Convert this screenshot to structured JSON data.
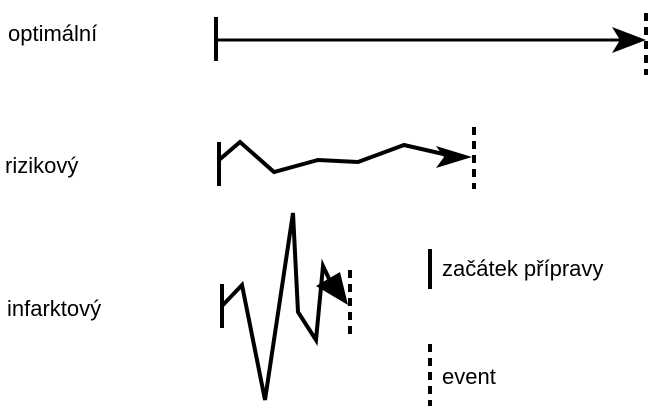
{
  "rows": [
    {
      "label": "optimální"
    },
    {
      "label": "rizikový"
    },
    {
      "label": "infarktový"
    }
  ],
  "legend": {
    "start": {
      "label": "začátek přípravy",
      "marker": "solid-line"
    },
    "event": {
      "label": "event",
      "marker": "dashed-line"
    }
  },
  "colors": {
    "ink": "#000000",
    "background": "#ffffff"
  }
}
